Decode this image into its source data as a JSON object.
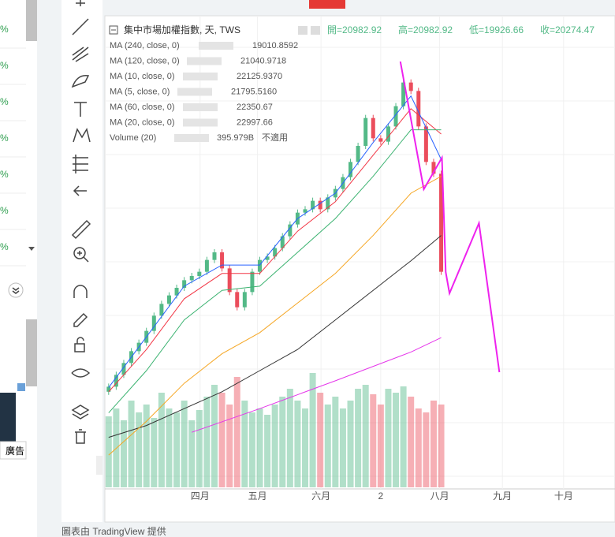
{
  "sidebar": {
    "items": [
      "%",
      "%",
      "%",
      "%",
      "%",
      "%",
      "%"
    ],
    "ad": "廣告"
  },
  "header": {
    "title": "集中市場加權指數, 天, TWS",
    "open": "開=20982.92",
    "high": "高=20982.92",
    "low": "低=19926.66",
    "close": "收=20274.47"
  },
  "chart_data": {
    "type": "candlestick",
    "xlim": [
      -0.5,
      67
    ],
    "ylim": [
      15800,
      21400
    ],
    "up_color": "#53b987",
    "down_color": "#eb4d5c",
    "xticks": [
      {
        "value": 12.1,
        "label": "四月"
      },
      {
        "value": 19.7,
        "label": "五月"
      },
      {
        "value": 28.1,
        "label": "六月"
      },
      {
        "value": 36.0,
        "label": "2"
      },
      {
        "value": 43.8,
        "label": "八月"
      },
      {
        "value": 52.1,
        "label": "九月"
      },
      {
        "value": 60.2,
        "label": "十月"
      }
    ],
    "open": [
      16950,
      17010,
      17150,
      17290,
      17430,
      17530,
      17670,
      17850,
      17990,
      18090,
      18180,
      18270,
      18320,
      18370,
      18510,
      18600,
      18410,
      18130,
      17950,
      18130,
      18370,
      18510,
      18550,
      18650,
      18790,
      18930,
      19070,
      19110,
      19210,
      19110,
      19250,
      19350,
      19490,
      19670,
      19860,
      20190,
      19950,
      19910,
      20090,
      20330,
      20610,
      20510,
      20090,
      19670,
      19530
    ],
    "close": [
      17010,
      17150,
      17290,
      17430,
      17530,
      17670,
      17850,
      17990,
      18090,
      18180,
      18270,
      18320,
      18370,
      18510,
      18600,
      18410,
      18130,
      17950,
      18130,
      18370,
      18510,
      18550,
      18650,
      18790,
      18930,
      19070,
      19110,
      19210,
      19110,
      19250,
      19350,
      19490,
      19670,
      19860,
      20190,
      19950,
      19910,
      20090,
      20330,
      20610,
      20510,
      20090,
      19670,
      19530,
      18370
    ],
    "ma": [
      {
        "name": "MA (240, close, 0)",
        "legend_value": "19010.8592",
        "color": "#e535ea",
        "x": [
          11,
          20,
          30,
          40,
          44
        ],
        "values": [
          16470,
          16750,
          17080,
          17420,
          17590
        ]
      },
      {
        "name": "MA (120, close, 0)",
        "legend_value": "21040.9718",
        "color": "#333333",
        "x": [
          0,
          5,
          10,
          15,
          20,
          25,
          30,
          35,
          40,
          44
        ],
        "values": [
          16410,
          16550,
          16750,
          16950,
          17200,
          17450,
          17800,
          18150,
          18500,
          18800
        ]
      },
      {
        "name": "MA (10, close, 0)",
        "legend_value": "22125.9370",
        "color": "#f23645",
        "x": [
          0,
          5,
          10,
          15,
          20,
          25,
          30,
          35,
          40,
          44
        ],
        "values": [
          16950,
          17450,
          18050,
          18350,
          18350,
          18850,
          19200,
          19750,
          20300,
          20000
        ]
      },
      {
        "name": "MA (5, close, 0)",
        "legend_value": "21795.5160",
        "color": "#2962ff",
        "x": [
          0,
          5,
          10,
          15,
          20,
          25,
          30,
          35,
          40,
          44
        ],
        "values": [
          17000,
          17600,
          18200,
          18450,
          18450,
          19000,
          19300,
          19900,
          20450,
          19700
        ]
      },
      {
        "name": "MA (60, close, 0)",
        "legend_value": "22350.67",
        "color": "#f5a623",
        "x": [
          0,
          5,
          10,
          15,
          20,
          25,
          30,
          35,
          40,
          44
        ],
        "values": [
          16200,
          16600,
          17050,
          17400,
          17650,
          18000,
          18350,
          18800,
          19300,
          19500
        ]
      },
      {
        "name": "MA (20, close, 0)",
        "legend_value": "22997.66",
        "color": "#3cb371",
        "x": [
          0,
          5,
          10,
          15,
          20,
          25,
          30,
          35,
          40,
          44
        ],
        "values": [
          16700,
          17200,
          17800,
          18150,
          18200,
          18600,
          19000,
          19500,
          20050,
          20050
        ]
      }
    ],
    "volume": {
      "name": "Volume (20)",
      "legend_value": "395.979B",
      "note": "不適用",
      "color": "#4caf50",
      "ylim": [
        0,
        150
      ],
      "values": [
        90,
        100,
        85,
        110,
        95,
        105,
        88,
        120,
        100,
        95,
        110,
        85,
        98,
        115,
        130,
        120,
        105,
        140,
        110,
        95,
        100,
        92,
        105,
        115,
        125,
        110,
        100,
        145,
        120,
        105,
        115,
        100,
        110,
        125,
        130,
        118,
        105,
        125,
        120,
        128,
        115,
        100,
        95,
        110,
        105
      ]
    },
    "drawing": {
      "color": "#ee22ee",
      "x": [
        38.6,
        41.7,
        44.1,
        44.6,
        45.1,
        49.0,
        51.7
      ],
      "values": [
        20858,
        19347,
        19720,
        18367,
        18115,
        18945,
        17181
      ]
    }
  },
  "footer": "圖表由 TradingView 提供"
}
